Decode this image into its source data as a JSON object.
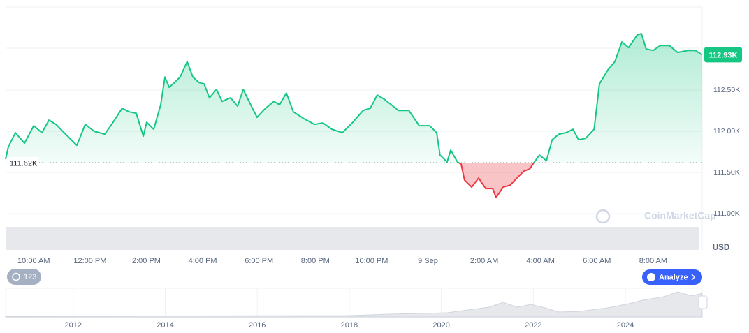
{
  "chart_data": {
    "type": "line",
    "x": [
      9.0,
      9.1,
      9.35,
      9.67,
      10.0,
      10.29,
      10.54,
      10.79,
      11.03,
      11.28,
      11.53,
      11.83,
      12.15,
      12.52,
      12.77,
      13.14,
      13.39,
      13.64,
      13.89,
      14.01,
      14.26,
      14.51,
      14.66,
      14.81,
      15.0,
      15.2,
      15.45,
      15.65,
      15.87,
      16.05,
      16.24,
      16.49,
      16.69,
      16.99,
      17.24,
      17.44,
      17.68,
      17.93,
      18.23,
      18.53,
      18.73,
      18.97,
      19.22,
      19.6,
      19.97,
      20.27,
      20.59,
      20.96,
      21.33,
      21.7,
      21.95,
      22.2,
      22.45,
      22.7,
      22.95,
      23.32,
      23.69,
      24.06,
      24.31,
      24.43,
      24.68,
      24.81,
      25.05,
      25.18,
      25.3,
      25.55,
      25.8,
      26.05,
      26.3,
      26.42,
      26.67,
      26.92,
      27.16,
      27.41,
      27.61,
      27.78,
      27.96,
      28.21,
      28.41,
      28.65,
      28.9,
      29.15,
      29.35,
      29.6,
      29.9,
      30.09,
      30.39,
      30.64,
      30.89,
      31.13,
      31.43,
      31.58,
      31.75,
      32.0,
      32.25,
      32.57,
      32.87,
      33.24,
      33.49,
      33.74
    ],
    "values": [
      111661,
      111814,
      111983,
      111856,
      112068,
      111983,
      112136,
      112085,
      112000,
      111915,
      111831,
      112085,
      112000,
      111966,
      112085,
      112280,
      112237,
      112220,
      111941,
      112110,
      112025,
      112322,
      112661,
      112534,
      112593,
      112661,
      112848,
      112661,
      112593,
      112576,
      112407,
      112509,
      112364,
      112407,
      112305,
      112509,
      112339,
      112170,
      112280,
      112364,
      112322,
      112466,
      112237,
      112153,
      112085,
      112102,
      112025,
      111983,
      112110,
      112254,
      112280,
      112441,
      112390,
      112322,
      112254,
      112254,
      112068,
      112068,
      111983,
      111712,
      111627,
      111771,
      111627,
      111602,
      111407,
      111322,
      111432,
      111305,
      111305,
      111195,
      111322,
      111347,
      111432,
      111517,
      111542,
      111627,
      111712,
      111644,
      111898,
      111966,
      111983,
      112025,
      111898,
      111915,
      112025,
      112576,
      112746,
      112848,
      113085,
      113017,
      113170,
      113187,
      113000,
      112983,
      113042,
      113042,
      112958,
      112983,
      112983,
      112930
    ],
    "colors": {
      "up": "#16c784",
      "down": "#ea3943"
    },
    "xlim": [
      9.0,
      33.74
    ],
    "xticks": [
      {
        "value": 10,
        "label": "10:00 AM"
      },
      {
        "value": 12,
        "label": "12:00 PM"
      },
      {
        "value": 14,
        "label": "2:00 PM"
      },
      {
        "value": 16,
        "label": "4:00 PM"
      },
      {
        "value": 18,
        "label": "6:00 PM"
      },
      {
        "value": 20,
        "label": "8:00 PM"
      },
      {
        "value": 22,
        "label": "10:00 PM"
      },
      {
        "value": 24,
        "label": "9 Sep"
      },
      {
        "value": 26,
        "label": "2:00 AM"
      },
      {
        "value": 28,
        "label": "4:00 AM"
      },
      {
        "value": 30,
        "label": "6:00 AM"
      },
      {
        "value": 32,
        "label": "8:00 AM"
      }
    ],
    "ylim": [
      110560,
      113510
    ],
    "yticks": [
      {
        "value": 111000,
        "label": "111.00K"
      },
      {
        "value": 111500,
        "label": "111.50K"
      },
      {
        "value": 112000,
        "label": "112.00K"
      },
      {
        "value": 112500,
        "label": "112.50K"
      }
    ],
    "grid": true,
    "baseline": {
      "value": 111620,
      "label": "111.62K"
    },
    "last_price": {
      "value": 112930,
      "label": "112.93K"
    },
    "y_unit": "USD",
    "watermark": "CoinMarketCap"
  },
  "navigator": {
    "xlim": [
      2010.53,
      2025.67
    ],
    "xticks": [
      2012,
      2014,
      2016,
      2018,
      2020,
      2022,
      2024
    ]
  },
  "ui": {
    "history_button": "123",
    "analyze_button": "Analyze"
  }
}
